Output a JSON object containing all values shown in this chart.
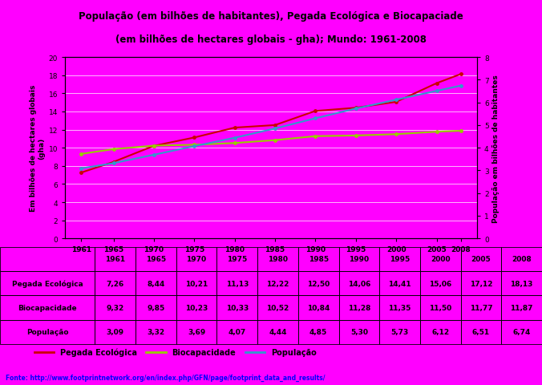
{
  "title_line1": "População (em bilhões de habitantes), Pegada Ecológica e Biocapaciade",
  "title_line2": "(em bilhões de hectares globais - gha); Mundo: 1961-2008",
  "years": [
    1961,
    1965,
    1970,
    1975,
    1980,
    1985,
    1990,
    1995,
    2000,
    2005,
    2008
  ],
  "pegada": [
    7.26,
    8.44,
    10.21,
    11.13,
    12.22,
    12.5,
    14.06,
    14.41,
    15.06,
    17.12,
    18.13
  ],
  "biocapacidade": [
    9.32,
    9.85,
    10.23,
    10.33,
    10.52,
    10.84,
    11.28,
    11.35,
    11.5,
    11.77,
    11.87
  ],
  "populacao": [
    3.09,
    3.32,
    3.69,
    4.07,
    4.44,
    4.85,
    5.3,
    5.73,
    6.12,
    6.51,
    6.74
  ],
  "pegada_color": "#cc0000",
  "biocapacidade_color": "#99cc00",
  "populacao_color": "#3399cc",
  "background_color": "#ff00ff",
  "text_color": "#000000",
  "ylabel_left": "Em bilhões de hectares globais\n(gha)",
  "ylabel_right": "População em bilhões de habitantes",
  "ylim_left": [
    0,
    20
  ],
  "ylim_right": [
    0,
    8
  ],
  "yticks_left": [
    0,
    2,
    4,
    6,
    8,
    10,
    12,
    14,
    16,
    18,
    20
  ],
  "yticks_right": [
    0,
    1,
    2,
    3,
    4,
    5,
    6,
    7,
    8
  ],
  "fonte": "Fonte: http://www.footprintnetwork.org/en/index.php/GFN/page/footprint_data_and_results/",
  "table_row1_label": "Pegada Ecológica",
  "table_row2_label": "Biocapacidade",
  "table_row3_label": "População",
  "legend_pegada": "Pegada Ecológica",
  "legend_biocap": "Biocapacidade",
  "legend_pop": "População",
  "pegada_fmt": [
    "7,26",
    "8,44",
    "10,21",
    "11,13",
    "12,22",
    "12,50",
    "14,06",
    "14,41",
    "15,06",
    "17,12",
    "18,13"
  ],
  "biocap_fmt": [
    "9,32",
    "9,85",
    "10,23",
    "10,33",
    "10,52",
    "10,84",
    "11,28",
    "11,35",
    "11,50",
    "11,77",
    "11,87"
  ],
  "pop_fmt": [
    "3,09",
    "3,32",
    "3,69",
    "4,07",
    "4,44",
    "4,85",
    "5,30",
    "5,73",
    "6,12",
    "6,51",
    "6,74"
  ]
}
